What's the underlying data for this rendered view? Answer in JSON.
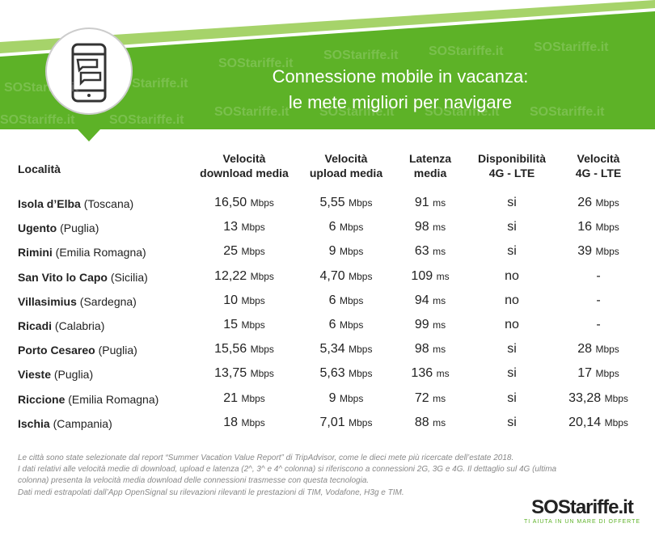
{
  "header": {
    "title_lines": [
      "Connessione mobile in vacanza:",
      "le mete migliori per navigare"
    ],
    "watermark": "SOStariffe.it"
  },
  "table": {
    "columns": [
      [
        "Località"
      ],
      [
        "Velocità",
        "download media"
      ],
      [
        "Velocità",
        "upload media"
      ],
      [
        "Latenza",
        "media"
      ],
      [
        "Disponibilità",
        "4G - LTE"
      ],
      [
        "Velocità",
        "4G - LTE"
      ]
    ],
    "rows": [
      {
        "place": "Isola d’Elba",
        "region": "(Toscana)",
        "cells": [
          {
            "value": "16,50",
            "unit": "Mbps"
          },
          {
            "value": "5,55",
            "unit": "Mbps"
          },
          {
            "value": "91",
            "unit": "ms"
          },
          {
            "value": "si"
          },
          {
            "value": "26",
            "unit": "Mbps"
          }
        ]
      },
      {
        "place": "Ugento",
        "region": "(Puglia)",
        "cells": [
          {
            "value": "13",
            "unit": "Mbps"
          },
          {
            "value": "6",
            "unit": "Mbps"
          },
          {
            "value": "98",
            "unit": "ms"
          },
          {
            "value": "si"
          },
          {
            "value": "16",
            "unit": "Mbps"
          }
        ]
      },
      {
        "place": "Rimini",
        "region": "(Emilia Romagna)",
        "cells": [
          {
            "value": "25",
            "unit": "Mbps"
          },
          {
            "value": "9",
            "unit": "Mbps"
          },
          {
            "value": "63",
            "unit": "ms"
          },
          {
            "value": "si"
          },
          {
            "value": "39",
            "unit": "Mbps"
          }
        ]
      },
      {
        "place": "San Vito lo Capo",
        "region": "(Sicilia)",
        "cells": [
          {
            "value": "12,22",
            "unit": "Mbps"
          },
          {
            "value": "4,70",
            "unit": "Mbps"
          },
          {
            "value": "109",
            "unit": "ms"
          },
          {
            "value": "no"
          },
          {
            "value": "-"
          }
        ]
      },
      {
        "place": "Villasimius",
        "region": "(Sardegna)",
        "cells": [
          {
            "value": "10",
            "unit": "Mbps"
          },
          {
            "value": "6",
            "unit": "Mbps"
          },
          {
            "value": "94",
            "unit": "ms"
          },
          {
            "value": "no"
          },
          {
            "value": "-"
          }
        ]
      },
      {
        "place": "Ricadi",
        "region": "(Calabria)",
        "cells": [
          {
            "value": "15",
            "unit": "Mbps"
          },
          {
            "value": "6",
            "unit": "Mbps"
          },
          {
            "value": "99",
            "unit": "ms"
          },
          {
            "value": "no"
          },
          {
            "value": "-"
          }
        ]
      },
      {
        "place": "Porto Cesareo",
        "region": "(Puglia)",
        "cells": [
          {
            "value": "15,56",
            "unit": "Mbps"
          },
          {
            "value": "5,34",
            "unit": "Mbps"
          },
          {
            "value": "98",
            "unit": "ms"
          },
          {
            "value": "si"
          },
          {
            "value": "28",
            "unit": "Mbps"
          }
        ]
      },
      {
        "place": "Vieste",
        "region": "(Puglia)",
        "cells": [
          {
            "value": "13,75",
            "unit": "Mbps"
          },
          {
            "value": "5,63",
            "unit": "Mbps"
          },
          {
            "value": "136",
            "unit": "ms"
          },
          {
            "value": "si"
          },
          {
            "value": "17",
            "unit": "Mbps"
          }
        ]
      },
      {
        "place": "Riccione",
        "region": "(Emilia Romagna)",
        "cells": [
          {
            "value": "21",
            "unit": "Mbps"
          },
          {
            "value": "9",
            "unit": "Mbps"
          },
          {
            "value": "72",
            "unit": "ms"
          },
          {
            "value": "si"
          },
          {
            "value": "33,28",
            "unit": "Mbps"
          }
        ]
      },
      {
        "place": "Ischia",
        "region": "(Campania)",
        "cells": [
          {
            "value": "18",
            "unit": "Mbps"
          },
          {
            "value": "7,01",
            "unit": "Mbps"
          },
          {
            "value": "88",
            "unit": "ms"
          },
          {
            "value": "si"
          },
          {
            "value": "20,14",
            "unit": "Mbps"
          }
        ]
      }
    ]
  },
  "notes": [
    "Le città sono state selezionate dal report “Summer Vacation Value Report” di TripAdvisor, come le dieci mete più ricercate dell’estate 2018.",
    "I dati relativi alle velocità medie di download, upload e latenza (2^, 3^ e 4^ colonna) si riferiscono a connessioni 2G, 3G e 4G. Il dettaglio sul 4G (ultima",
    "colonna) presenta la velocità media download delle connessioni trasmesse con questa tecnologia.",
    "Dati medi estrapolati dall’App OpenSignal su rilevazioni rilevanti le prestazioni di TIM, Vodafone, H3g e TIM."
  ],
  "logo": {
    "name": "SOStariffe.it",
    "tagline": "TI AIUTA IN UN MARE DI OFFERTE"
  }
}
